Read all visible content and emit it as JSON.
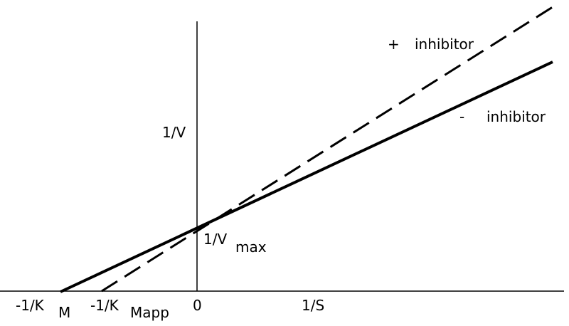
{
  "labels": {
    "plus_sign": "+",
    "plus_text": "inhibitor",
    "minus_sign": "-",
    "minus_text": "inhibitor",
    "y_axis": "1/V",
    "intercept_main": "1/V",
    "intercept_sub": "max",
    "km_main": "-1/K",
    "km_sub": "M",
    "kmapp_main": "-1/K",
    "kmapp_sub": "Mapp",
    "origin": "0",
    "x_axis": "1/S"
  }
}
